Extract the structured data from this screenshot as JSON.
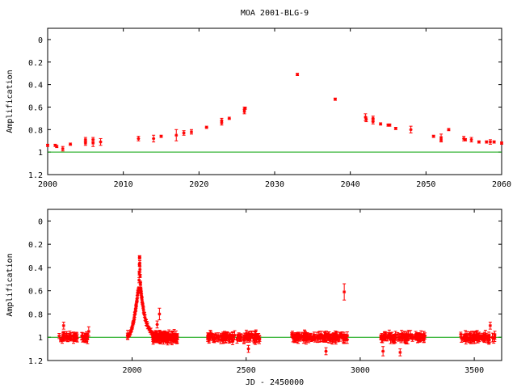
{
  "title": "MOA 2001-BLG-9",
  "colors": {
    "data": "#ff0000",
    "model": "#00a000",
    "axes": "#000000"
  },
  "chart_data": [
    {
      "type": "scatter",
      "panel": "top",
      "ylabel": "Amplification",
      "xlabel": "",
      "xlim": [
        2000,
        2060
      ],
      "ylim": [
        1.2,
        -0.1
      ],
      "y_inverted": true,
      "xticks": [
        "2000",
        "2010",
        "2020",
        "2030",
        "2040",
        "2050",
        "2060"
      ],
      "yticks": [
        "0",
        "0.2",
        "0.4",
        "0.6",
        "0.8",
        "1",
        "1.2"
      ],
      "baseline": 1,
      "points": [
        [
          2000.0,
          0.94,
          0.01
        ],
        [
          2001.0,
          0.94,
          0.01
        ],
        [
          2001.2,
          0.95,
          0.01
        ],
        [
          2002.0,
          0.97,
          0.02
        ],
        [
          2003.0,
          0.93,
          0.01
        ],
        [
          2005.0,
          0.92,
          0.02
        ],
        [
          2005.0,
          0.89,
          0.02
        ],
        [
          2006.0,
          0.92,
          0.03
        ],
        [
          2006.0,
          0.89,
          0.02
        ],
        [
          2007.0,
          0.91,
          0.03
        ],
        [
          2012.0,
          0.88,
          0.02
        ],
        [
          2014.0,
          0.88,
          0.03
        ],
        [
          2015.0,
          0.86,
          0.01
        ],
        [
          2017.0,
          0.85,
          0.05
        ],
        [
          2018.0,
          0.83,
          0.02
        ],
        [
          2019.0,
          0.82,
          0.02
        ],
        [
          2021.0,
          0.78,
          0.01
        ],
        [
          2023.0,
          0.72,
          0.02
        ],
        [
          2023.0,
          0.74,
          0.02
        ],
        [
          2024.0,
          0.7,
          0.01
        ],
        [
          2026.0,
          0.62,
          0.02
        ],
        [
          2026.0,
          0.64,
          0.02
        ],
        [
          2026.1,
          0.61,
          0.01
        ],
        [
          2033.0,
          0.31,
          0.01
        ],
        [
          2038.0,
          0.53,
          0.01
        ],
        [
          2042.0,
          0.69,
          0.03
        ],
        [
          2042.1,
          0.71,
          0.02
        ],
        [
          2043.0,
          0.7,
          0.02
        ],
        [
          2043.0,
          0.73,
          0.02
        ],
        [
          2044.0,
          0.75,
          0.01
        ],
        [
          2045.0,
          0.76,
          0.01
        ],
        [
          2045.2,
          0.76,
          0.01
        ],
        [
          2046.0,
          0.79,
          0.01
        ],
        [
          2048.0,
          0.8,
          0.03
        ],
        [
          2051.0,
          0.86,
          0.01
        ],
        [
          2052.0,
          0.87,
          0.03
        ],
        [
          2052.0,
          0.89,
          0.02
        ],
        [
          2053.0,
          0.8,
          0.01
        ],
        [
          2055.0,
          0.88,
          0.02
        ],
        [
          2055.2,
          0.89,
          0.01
        ],
        [
          2056.0,
          0.89,
          0.02
        ],
        [
          2057.0,
          0.91,
          0.01
        ],
        [
          2058.0,
          0.91,
          0.01
        ],
        [
          2058.5,
          0.91,
          0.02
        ],
        [
          2059.0,
          0.91,
          0.01
        ],
        [
          2060.0,
          0.92,
          0.01
        ]
      ]
    },
    {
      "type": "scatter",
      "panel": "bottom",
      "ylabel": "Amplification",
      "xlabel": "JD - 2450000",
      "xlim": [
        1630,
        3620
      ],
      "ylim": [
        1.2,
        -0.1
      ],
      "y_inverted": true,
      "xticks": [
        "2000",
        "2500",
        "3000",
        "3500"
      ],
      "yticks": [
        "0",
        "0.2",
        "0.4",
        "0.6",
        "0.8",
        "1",
        "1.2"
      ],
      "baseline": 1,
      "seasons": [
        [
          1680,
          1760
        ],
        [
          1780,
          1810
        ],
        [
          1980,
          2200
        ],
        [
          2330,
          2560
        ],
        [
          2700,
          2950
        ],
        [
          3090,
          3290
        ],
        [
          3440,
          3590
        ]
      ],
      "peak": [
        [
          1980,
          0.99
        ],
        [
          1990,
          0.97
        ],
        [
          2000,
          0.92
        ],
        [
          2008,
          0.85
        ],
        [
          2015,
          0.77
        ],
        [
          2020,
          0.7
        ],
        [
          2025,
          0.62
        ],
        [
          2030,
          0.58
        ],
        [
          2033,
          0.31
        ],
        [
          2036,
          0.53
        ],
        [
          2040,
          0.62
        ],
        [
          2045,
          0.7
        ],
        [
          2052,
          0.79
        ],
        [
          2062,
          0.87
        ],
        [
          2075,
          0.93
        ],
        [
          2090,
          0.97
        ],
        [
          2110,
          0.99
        ]
      ],
      "outliers": [
        [
          1700,
          0.9,
          0.03
        ],
        [
          1810,
          0.95,
          0.04
        ],
        [
          2120,
          0.8,
          0.05
        ],
        [
          2110,
          0.89,
          0.03
        ],
        [
          2930,
          0.61,
          0.07
        ],
        [
          3100,
          1.12,
          0.04
        ],
        [
          3175,
          1.13,
          0.03
        ],
        [
          2850,
          1.12,
          0.03
        ],
        [
          3570,
          0.9,
          0.03
        ],
        [
          2510,
          1.1,
          0.03
        ]
      ]
    }
  ]
}
